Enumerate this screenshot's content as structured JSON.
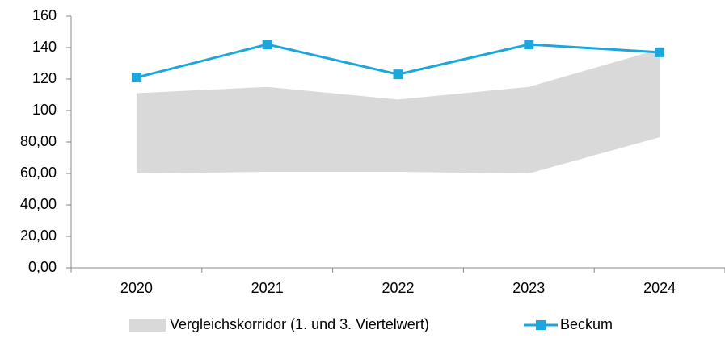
{
  "chart_data": {
    "type": "line",
    "categories": [
      "2020",
      "2021",
      "2022",
      "2023",
      "2024"
    ],
    "series": [
      {
        "name": "Vergleichskorridor (1. und 3. Viertelwert)",
        "type": "band",
        "color": "#d9d9d9",
        "values": [
          111,
          115,
          107,
          115,
          139
        ],
        "lower": [
          60,
          61,
          61,
          60,
          83
        ]
      },
      {
        "name": "Beckum",
        "type": "line",
        "color": "#1ba6dc",
        "values": [
          121,
          142,
          123,
          142,
          137
        ]
      }
    ],
    "ylim": [
      0,
      160
    ],
    "yticks": [
      {
        "value": 0,
        "label": "0,00"
      },
      {
        "value": 20,
        "label": "20,00"
      },
      {
        "value": 40,
        "label": "40,00"
      },
      {
        "value": 60,
        "label": "60,00"
      },
      {
        "value": 80,
        "label": "80,00"
      },
      100,
      120,
      140,
      160
    ],
    "legend": "bottom"
  }
}
